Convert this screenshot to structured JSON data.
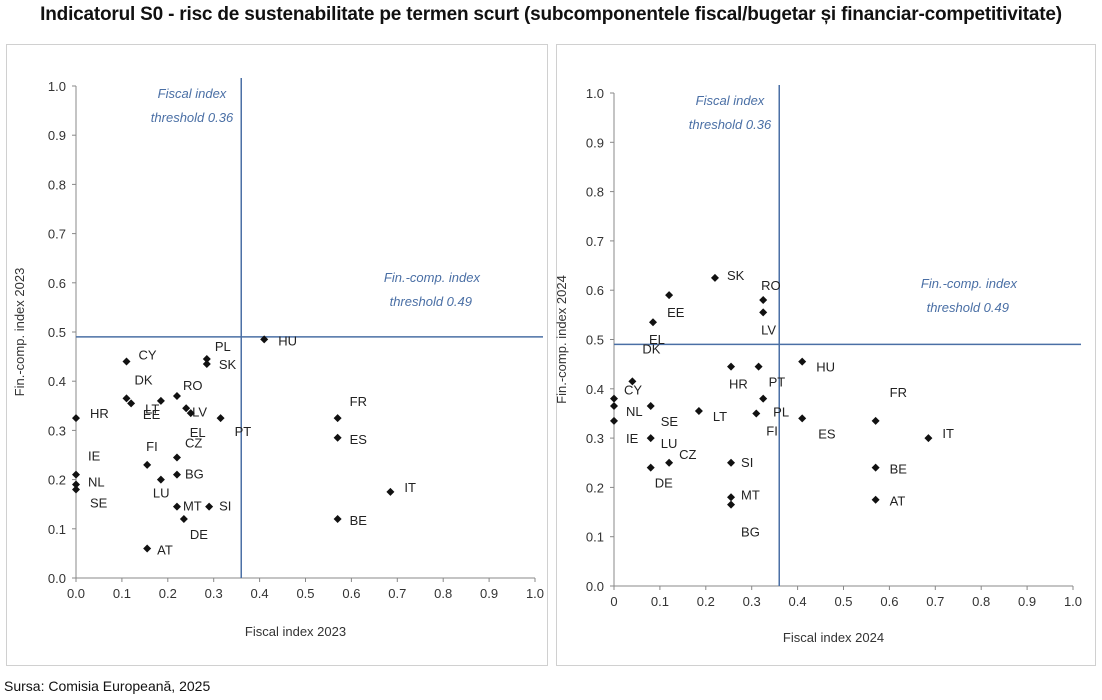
{
  "title": "Indicatorul S0 - risc de sustenabilitate pe termen scurt (subcomponentele fiscal/bugetar și financiar-competitivitate)",
  "source": "Sursa: Comisia Europeană, 2025",
  "colors": {
    "threshold": "#4a6fa5",
    "marker": "#111111",
    "axis": "#888888"
  },
  "chart_data": [
    {
      "type": "scatter",
      "xlabel": "Fiscal index 2023",
      "ylabel": "Fin.-comp. index 2023",
      "xlim": [
        0,
        1
      ],
      "ylim": [
        0,
        1
      ],
      "xticks": [
        "0.0",
        "0.1",
        "0.2",
        "0.3",
        "0.4",
        "0.5",
        "0.6",
        "0.7",
        "0.8",
        "0.9",
        "1.0"
      ],
      "yticks": [
        "0.0",
        "0.1",
        "0.2",
        "0.3",
        "0.4",
        "0.5",
        "0.6",
        "0.7",
        "0.8",
        "0.9",
        "1.0"
      ],
      "grid": false,
      "thresholds": {
        "fiscal": {
          "value": 0.36,
          "label_line1": "Fiscal index",
          "label_line2": "threshold 0.36"
        },
        "fincomp": {
          "value": 0.49,
          "label_line1": "Fin.-comp. index",
          "label_line2": "threshold 0.49"
        }
      },
      "points": [
        {
          "label": "CY",
          "x": 0.11,
          "y": 0.44
        },
        {
          "label": "DK",
          "x": 0.11,
          "y": 0.365
        },
        {
          "label": "LT",
          "x": 0.12,
          "y": 0.355
        },
        {
          "label": "HR",
          "x": 0.0,
          "y": 0.325
        },
        {
          "label": "IE",
          "x": 0.0,
          "y": 0.21
        },
        {
          "label": "NL",
          "x": 0.0,
          "y": 0.19
        },
        {
          "label": "SE",
          "x": 0.0,
          "y": 0.18
        },
        {
          "label": "PL",
          "x": 0.285,
          "y": 0.445
        },
        {
          "label": "SK",
          "x": 0.285,
          "y": 0.435
        },
        {
          "label": "HU",
          "x": 0.41,
          "y": 0.485
        },
        {
          "label": "RO",
          "x": 0.22,
          "y": 0.37
        },
        {
          "label": "EE",
          "x": 0.185,
          "y": 0.36
        },
        {
          "label": "LV",
          "x": 0.24,
          "y": 0.345
        },
        {
          "label": "EL",
          "x": 0.25,
          "y": 0.335
        },
        {
          "label": "PT",
          "x": 0.315,
          "y": 0.325
        },
        {
          "label": "FI",
          "x": 0.155,
          "y": 0.23
        },
        {
          "label": "CZ",
          "x": 0.22,
          "y": 0.245
        },
        {
          "label": "BG",
          "x": 0.22,
          "y": 0.21
        },
        {
          "label": "LU",
          "x": 0.185,
          "y": 0.2
        },
        {
          "label": "MT",
          "x": 0.22,
          "y": 0.145
        },
        {
          "label": "SI",
          "x": 0.29,
          "y": 0.145
        },
        {
          "label": "DE",
          "x": 0.235,
          "y": 0.12
        },
        {
          "label": "AT",
          "x": 0.155,
          "y": 0.06
        },
        {
          "label": "FR",
          "x": 0.57,
          "y": 0.325
        },
        {
          "label": "ES",
          "x": 0.57,
          "y": 0.285
        },
        {
          "label": "BE",
          "x": 0.57,
          "y": 0.12
        },
        {
          "label": "IT",
          "x": 0.685,
          "y": 0.175
        }
      ]
    },
    {
      "type": "scatter",
      "xlabel": "Fiscal index 2024",
      "ylabel": "Fin.-comp. index 2024",
      "xlim": [
        0,
        1
      ],
      "ylim": [
        0,
        1
      ],
      "xticks": [
        "0",
        "0.1",
        "0.2",
        "0.3",
        "0.4",
        "0.5",
        "0.6",
        "0.7",
        "0.8",
        "0.9",
        "1.0"
      ],
      "yticks": [
        "0.0",
        "0.1",
        "0.2",
        "0.3",
        "0.4",
        "0.5",
        "0.6",
        "0.7",
        "0.8",
        "0.9",
        "1.0"
      ],
      "grid": false,
      "thresholds": {
        "fiscal": {
          "value": 0.36,
          "label_line1": "Fiscal index",
          "label_line2": "threshold 0.36"
        },
        "fincomp": {
          "value": 0.49,
          "label_line1": "Fin.-comp. index",
          "label_line2": "threshold 0.49"
        }
      },
      "points": [
        {
          "label": "CY",
          "x": 0.0,
          "y": 0.38
        },
        {
          "label": "NL",
          "x": 0.0,
          "y": 0.365
        },
        {
          "label": "IE",
          "x": 0.0,
          "y": 0.335
        },
        {
          "label": "DK",
          "x": 0.04,
          "y": 0.415
        },
        {
          "label": "SE",
          "x": 0.08,
          "y": 0.365
        },
        {
          "label": "LU",
          "x": 0.08,
          "y": 0.3
        },
        {
          "label": "DE",
          "x": 0.08,
          "y": 0.24
        },
        {
          "label": "CZ",
          "x": 0.12,
          "y": 0.25
        },
        {
          "label": "EE",
          "x": 0.12,
          "y": 0.59
        },
        {
          "label": "EL",
          "x": 0.085,
          "y": 0.535
        },
        {
          "label": "SK",
          "x": 0.22,
          "y": 0.625
        },
        {
          "label": "RO",
          "x": 0.325,
          "y": 0.58
        },
        {
          "label": "LV",
          "x": 0.325,
          "y": 0.555
        },
        {
          "label": "HR",
          "x": 0.255,
          "y": 0.445
        },
        {
          "label": "PT",
          "x": 0.315,
          "y": 0.445
        },
        {
          "label": "LT",
          "x": 0.185,
          "y": 0.355
        },
        {
          "label": "PL",
          "x": 0.325,
          "y": 0.38
        },
        {
          "label": "FI",
          "x": 0.31,
          "y": 0.35
        },
        {
          "label": "SI",
          "x": 0.255,
          "y": 0.25
        },
        {
          "label": "MT",
          "x": 0.255,
          "y": 0.18
        },
        {
          "label": "BG",
          "x": 0.255,
          "y": 0.165
        },
        {
          "label": "HU",
          "x": 0.41,
          "y": 0.455
        },
        {
          "label": "ES",
          "x": 0.41,
          "y": 0.34
        },
        {
          "label": "FR",
          "x": 0.57,
          "y": 0.335
        },
        {
          "label": "BE",
          "x": 0.57,
          "y": 0.24
        },
        {
          "label": "AT",
          "x": 0.57,
          "y": 0.175
        },
        {
          "label": "IT",
          "x": 0.685,
          "y": 0.3
        }
      ]
    }
  ]
}
